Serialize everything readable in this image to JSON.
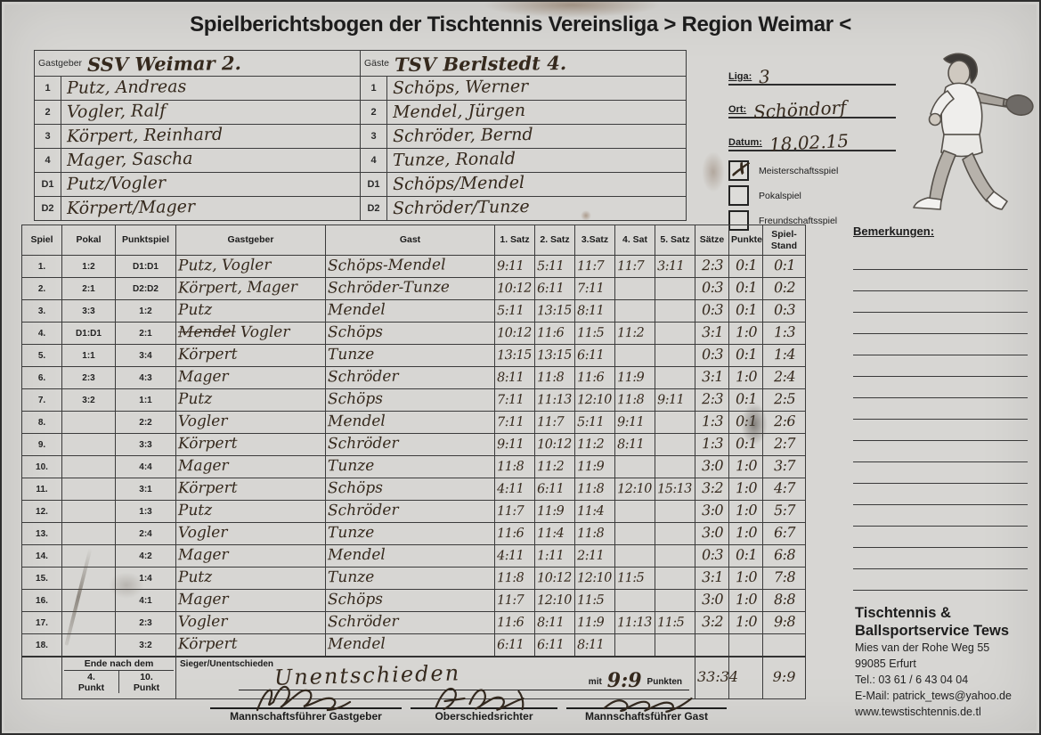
{
  "title": "Spielberichtsbogen der Tischtennis Vereinsliga > Region Weimar <",
  "colors": {
    "paper": "#d7d6d3",
    "printed_ink": "#1c1c1c",
    "pen_ink": "#35291d"
  },
  "roster": {
    "left_label": "Gastgeber",
    "right_label": "Gäste",
    "left_team": "SSV Weimar 2.",
    "right_team": "TSV Berlstedt 4.",
    "rows": [
      {
        "num": "1",
        "left": "Putz, Andreas",
        "right": "Schöps, Werner"
      },
      {
        "num": "2",
        "left": "Vogler, Ralf",
        "right": "Mendel, Jürgen"
      },
      {
        "num": "3",
        "left": "Körpert, Reinhard",
        "right": "Schröder, Bernd"
      },
      {
        "num": "4",
        "left": "Mager, Sascha",
        "right": "Tunze, Ronald"
      },
      {
        "num": "D1",
        "left": "Putz/Vogler",
        "right": "Schöps/Mendel"
      },
      {
        "num": "D2",
        "left": "Körpert/Mager",
        "right": "Schröder/Tunze"
      }
    ]
  },
  "meta": {
    "liga_label": "Liga:",
    "liga": "3",
    "ort_label": "Ort:",
    "ort": "Schöndorf",
    "datum_label": "Datum:",
    "datum": "18.02.15",
    "check_glyph": "✗",
    "match_types": [
      {
        "label": "Meisterschaftsspiel",
        "checked": true
      },
      {
        "label": "Pokalspiel",
        "checked": false
      },
      {
        "label": "Freundschaftsspiel",
        "checked": false
      }
    ]
  },
  "match_table": {
    "headers": [
      "Spiel",
      "Pokal",
      "Punktspiel",
      "Gastgeber",
      "Gast",
      "1. Satz",
      "2. Satz",
      "3.Satz",
      "4. Sat",
      "5. Satz",
      "Sätze",
      "Punkte",
      "Spiel-\nStand"
    ],
    "rows": [
      {
        "n": "1.",
        "pokal": "1:2",
        "punktspiel": "D1:D1",
        "gastgeber_strike": "",
        "gastgeber": "Putz, Vogler",
        "gast": "Schöps-Mendel",
        "s1": "9:11",
        "s2": "5:11",
        "s3": "11:7",
        "s4": "11:7",
        "s5": "3:11",
        "saetze": "2:3",
        "punkte": "0:1",
        "stand": "0:1"
      },
      {
        "n": "2.",
        "pokal": "2:1",
        "punktspiel": "D2:D2",
        "gastgeber_strike": "",
        "gastgeber": "Körpert, Mager",
        "gast": "Schröder-Tunze",
        "s1": "10:12",
        "s2": "6:11",
        "s3": "7:11",
        "s4": "",
        "s5": "",
        "saetze": "0:3",
        "punkte": "0:1",
        "stand": "0:2"
      },
      {
        "n": "3.",
        "pokal": "3:3",
        "punktspiel": "1:2",
        "gastgeber_strike": "",
        "gastgeber": "Putz",
        "gast": "Mendel",
        "s1": "5:11",
        "s2": "13:15",
        "s3": "8:11",
        "s4": "",
        "s5": "",
        "saetze": "0:3",
        "punkte": "0:1",
        "stand": "0:3"
      },
      {
        "n": "4.",
        "pokal": "D1:D1",
        "punktspiel": "2:1",
        "gastgeber_strike": "Mendel",
        "gastgeber": "Vogler",
        "gast": "Schöps",
        "s1": "10:12",
        "s2": "11:6",
        "s3": "11:5",
        "s4": "11:2",
        "s5": "",
        "saetze": "3:1",
        "punkte": "1:0",
        "stand": "1:3"
      },
      {
        "n": "5.",
        "pokal": "1:1",
        "punktspiel": "3:4",
        "gastgeber_strike": "",
        "gastgeber": "Körpert",
        "gast": "Tunze",
        "s1": "13:15",
        "s2": "13:15",
        "s3": "6:11",
        "s4": "",
        "s5": "",
        "saetze": "0:3",
        "punkte": "0:1",
        "stand": "1:4"
      },
      {
        "n": "6.",
        "pokal": "2:3",
        "punktspiel": "4:3",
        "gastgeber_strike": "",
        "gastgeber": "Mager",
        "gast": "Schröder",
        "s1": "8:11",
        "s2": "11:8",
        "s3": "11:6",
        "s4": "11:9",
        "s5": "",
        "saetze": "3:1",
        "punkte": "1:0",
        "stand": "2:4"
      },
      {
        "n": "7.",
        "pokal": "3:2",
        "punktspiel": "1:1",
        "gastgeber_strike": "",
        "gastgeber": "Putz",
        "gast": "Schöps",
        "s1": "7:11",
        "s2": "11:13",
        "s3": "12:10",
        "s4": "11:8",
        "s5": "9:11",
        "saetze": "2:3",
        "punkte": "0:1",
        "stand": "2:5"
      },
      {
        "n": "8.",
        "pokal": "",
        "punktspiel": "2:2",
        "gastgeber_strike": "",
        "gastgeber": "Vogler",
        "gast": "Mendel",
        "s1": "7:11",
        "s2": "11:7",
        "s3": "5:11",
        "s4": "9:11",
        "s5": "",
        "saetze": "1:3",
        "punkte": "0:1",
        "stand": "2:6"
      },
      {
        "n": "9.",
        "pokal": "",
        "punktspiel": "3:3",
        "gastgeber_strike": "",
        "gastgeber": "Körpert",
        "gast": "Schröder",
        "s1": "9:11",
        "s2": "10:12",
        "s3": "11:2",
        "s4": "8:11",
        "s5": "",
        "saetze": "1:3",
        "punkte": "0:1",
        "stand": "2:7"
      },
      {
        "n": "10.",
        "pokal": "",
        "punktspiel": "4:4",
        "gastgeber_strike": "",
        "gastgeber": "Mager",
        "gast": "Tunze",
        "s1": "11:8",
        "s2": "11:2",
        "s3": "11:9",
        "s4": "",
        "s5": "",
        "saetze": "3:0",
        "punkte": "1:0",
        "stand": "3:7"
      },
      {
        "n": "11.",
        "pokal": "",
        "punktspiel": "3:1",
        "gastgeber_strike": "",
        "gastgeber": "Körpert",
        "gast": "Schöps",
        "s1": "4:11",
        "s2": "6:11",
        "s3": "11:8",
        "s4": "12:10",
        "s5": "15:13",
        "saetze": "3:2",
        "punkte": "1:0",
        "stand": "4:7"
      },
      {
        "n": "12.",
        "pokal": "",
        "punktspiel": "1:3",
        "gastgeber_strike": "",
        "gastgeber": "Putz",
        "gast": "Schröder",
        "s1": "11:7",
        "s2": "11:9",
        "s3": "11:4",
        "s4": "",
        "s5": "",
        "saetze": "3:0",
        "punkte": "1:0",
        "stand": "5:7"
      },
      {
        "n": "13.",
        "pokal": "",
        "punktspiel": "2:4",
        "gastgeber_strike": "",
        "gastgeber": "Vogler",
        "gast": "Tunze",
        "s1": "11:6",
        "s2": "11:4",
        "s3": "11:8",
        "s4": "",
        "s5": "",
        "saetze": "3:0",
        "punkte": "1:0",
        "stand": "6:7"
      },
      {
        "n": "14.",
        "pokal": "",
        "punktspiel": "4:2",
        "gastgeber_strike": "",
        "gastgeber": "Mager",
        "gast": "Mendel",
        "s1": "4:11",
        "s2": "1:11",
        "s3": "2:11",
        "s4": "",
        "s5": "",
        "saetze": "0:3",
        "punkte": "0:1",
        "stand": "6:8"
      },
      {
        "n": "15.",
        "pokal": "",
        "punktspiel": "1:4",
        "gastgeber_strike": "",
        "gastgeber": "Putz",
        "gast": "Tunze",
        "s1": "11:8",
        "s2": "10:12",
        "s3": "12:10",
        "s4": "11:5",
        "s5": "",
        "saetze": "3:1",
        "punkte": "1:0",
        "stand": "7:8"
      },
      {
        "n": "16.",
        "pokal": "",
        "punktspiel": "4:1",
        "gastgeber_strike": "",
        "gastgeber": "Mager",
        "gast": "Schöps",
        "s1": "11:7",
        "s2": "12:10",
        "s3": "11:5",
        "s4": "",
        "s5": "",
        "saetze": "3:0",
        "punkte": "1:0",
        "stand": "8:8"
      },
      {
        "n": "17.",
        "pokal": "",
        "punktspiel": "2:3",
        "gastgeber_strike": "",
        "gastgeber": "Vogler",
        "gast": "Schröder",
        "s1": "11:6",
        "s2": "8:11",
        "s3": "11:9",
        "s4": "11:13",
        "s5": "11:5",
        "saetze": "3:2",
        "punkte": "1:0",
        "stand": "9:8"
      },
      {
        "n": "18.",
        "pokal": "",
        "punktspiel": "3:2",
        "gastgeber_strike": "",
        "gastgeber": "Körpert",
        "gast": "Mendel",
        "s1": "6:11",
        "s2": "6:11",
        "s3": "8:11",
        "s4": "",
        "s5": "",
        "saetze": "",
        "punkte": "",
        "stand": ""
      }
    ],
    "footer": {
      "ende_label": "Ende nach dem",
      "ende_left_num": "4.",
      "ende_left_word": "Punkt",
      "ende_right_num": "10.",
      "ende_right_word": "Punkt",
      "sieger_label": "Sieger/Unentschieden",
      "sieger_value": "Unentschieden",
      "mit_label": "mit",
      "mit_value": "9:9",
      "punkten_label": "Punkten",
      "saetze_total": "33:34",
      "punkte_total": "",
      "stand_total": "9:9"
    }
  },
  "remarks": {
    "heading": "Bemerkungen:",
    "line_count": 16
  },
  "signatures": [
    {
      "label": "Mannschaftsführer Gastgeber"
    },
    {
      "label": "Oberschiedsrichter"
    },
    {
      "label": "Mannschaftsführer Gast"
    }
  ],
  "vendor": {
    "name_line1": "Tischtennis &",
    "name_line2": "Ballsportservice Tews",
    "street": "Mies van der Rohe Weg 55",
    "city": "99085 Erfurt",
    "phone": "Tel.: 03 61 / 6 43 04 04",
    "email": "E-Mail: patrick_tews@yahoo.de",
    "web": "www.tewstischtennis.de.tl"
  }
}
